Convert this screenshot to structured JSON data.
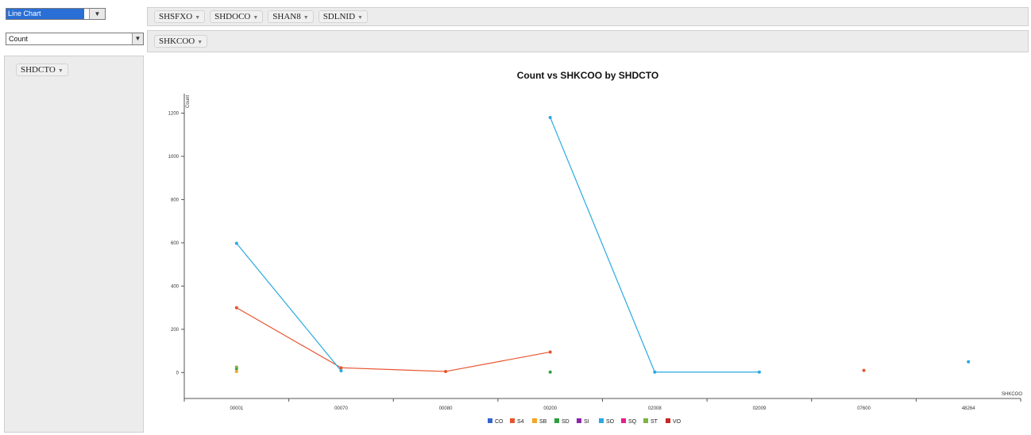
{
  "controls": {
    "renderer": "Line Chart",
    "aggregator": "Count"
  },
  "pivot": {
    "column_fields": [
      "SHSFXO",
      "SHDOCO",
      "SHAN8",
      "SDLNID"
    ],
    "row_area_fields": [
      "SHKCOO"
    ],
    "unused_fields": [
      "SHDCTO"
    ]
  },
  "chart_data": {
    "type": "line",
    "title": "Count vs SHKCOO by SHDCTO",
    "xlabel": "SHKCOO",
    "ylabel": "Count",
    "categories": [
      "00001",
      "00070",
      "00080",
      "00200",
      "02008",
      "02009",
      "07600",
      "48264"
    ],
    "yticks": [
      0,
      200,
      400,
      600,
      800,
      1000,
      1200
    ],
    "ylim": [
      -120,
      1290
    ],
    "legend_position": "bottom",
    "series": [
      {
        "name": "CO",
        "color": "#3366cc",
        "values": [
          null,
          null,
          null,
          null,
          null,
          null,
          null,
          null
        ]
      },
      {
        "name": "S4",
        "color": "#e8542f",
        "values": [
          300,
          22,
          5,
          95,
          null,
          null,
          10,
          null
        ]
      },
      {
        "name": "SB",
        "color": "#f5a623",
        "values": [
          5,
          null,
          null,
          null,
          null,
          null,
          null,
          null
        ]
      },
      {
        "name": "SD",
        "color": "#2e9f3e",
        "values": [
          18,
          null,
          null,
          2,
          null,
          null,
          null,
          null
        ]
      },
      {
        "name": "SI",
        "color": "#8e24aa",
        "values": [
          null,
          null,
          null,
          null,
          null,
          null,
          null,
          null
        ]
      },
      {
        "name": "SO",
        "color": "#29a9e1",
        "values": [
          598,
          8,
          null,
          1180,
          2,
          2,
          null,
          50
        ]
      },
      {
        "name": "SQ",
        "color": "#e91e8c",
        "values": [
          null,
          null,
          null,
          null,
          null,
          null,
          null,
          null
        ]
      },
      {
        "name": "ST",
        "color": "#7cb342",
        "values": [
          25,
          null,
          null,
          null,
          null,
          null,
          null,
          null
        ]
      },
      {
        "name": "VO",
        "color": "#c62828",
        "values": [
          null,
          null,
          null,
          null,
          null,
          null,
          null,
          null
        ]
      }
    ]
  }
}
